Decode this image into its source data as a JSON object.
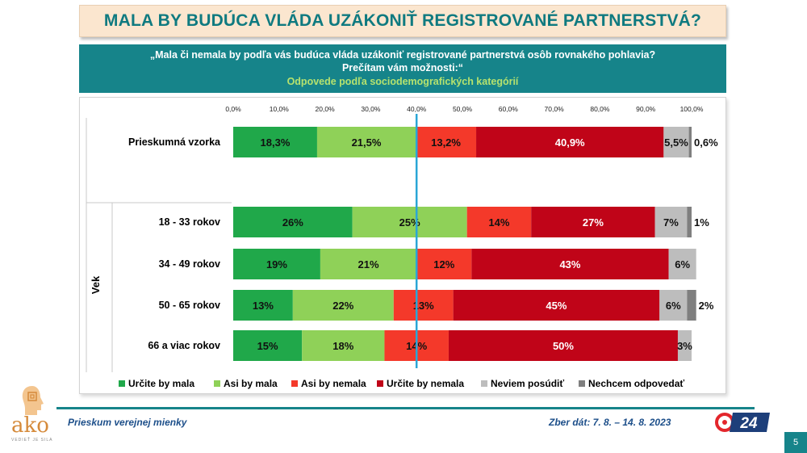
{
  "title": "MALA BY BUDÚCA VLÁDA UZÁKONIŤ REGISTROVANÉ PARTNERSTVÁ?",
  "question": "„Mala či nemala by podľa vás budúca vláda uzákoniť registrované partnerstvá osôb rovnakého pohlavia? Prečítam vám možnosti:“",
  "subtitle": "Odpovede podľa sociodemografických kategórií",
  "footer": {
    "left": "Prieskum verejnej mienky",
    "right": "Zber dát: 7. 8. – 14. 8. 2023",
    "page": "5",
    "logo_text": "ako",
    "logo_sub": "VEDIEŤ JE SILA",
    "logo24": "24"
  },
  "colors": {
    "accent": "#16848a",
    "title_text": "#0f7a80",
    "marker": "#2aa6d6"
  },
  "chart_data": {
    "type": "bar",
    "orientation": "horizontal",
    "stacked": true,
    "xlim": [
      0,
      100
    ],
    "ticks": [
      "0,0%",
      "10,0%",
      "20,0%",
      "30,0%",
      "40,0%",
      "50,0%",
      "60,0%",
      "70,0%",
      "80,0%",
      "90,0%",
      "100,0%"
    ],
    "reference_line": 40,
    "group_label": "Vek",
    "categories": [
      "Prieskumná vzorka",
      "18 - 33 rokov",
      "34 - 49 rokov",
      "50 - 65 rokov",
      "66 a viac rokov"
    ],
    "series": [
      {
        "name": "Určite by mala",
        "color": "#20a84a",
        "values": [
          18.3,
          26,
          19,
          13,
          15
        ],
        "labels": [
          "18,3%",
          "26%",
          "19%",
          "13%",
          "15%"
        ]
      },
      {
        "name": "Asi by mala",
        "color": "#8fd158",
        "values": [
          21.5,
          25,
          21,
          22,
          18
        ],
        "labels": [
          "21,5%",
          "25%",
          "21%",
          "22%",
          "18%"
        ]
      },
      {
        "name": "Asi by nemala",
        "color": "#f4392a",
        "values": [
          13.2,
          14,
          12,
          13,
          14
        ],
        "labels": [
          "13,2%",
          "14%",
          "12%",
          "13%",
          "14%"
        ]
      },
      {
        "name": "Určite by nemala",
        "color": "#c00418",
        "values": [
          40.9,
          27,
          43,
          45,
          50
        ],
        "labels": [
          "40,9%",
          "27%",
          "43%",
          "45%",
          "50%"
        ]
      },
      {
        "name": "Neviem posúdiť",
        "color": "#bdbdbd",
        "values": [
          5.5,
          7,
          6,
          6,
          3
        ],
        "labels": [
          "5,5%",
          "7%",
          "6%",
          "6%",
          "3%"
        ]
      },
      {
        "name": "Nechcem odpovedať",
        "color": "#7f7f7f",
        "values": [
          0.6,
          1,
          0,
          2,
          0
        ],
        "labels": [
          "0,6%",
          "1%",
          "",
          "2%",
          ""
        ]
      }
    ],
    "legend_position": "bottom"
  }
}
